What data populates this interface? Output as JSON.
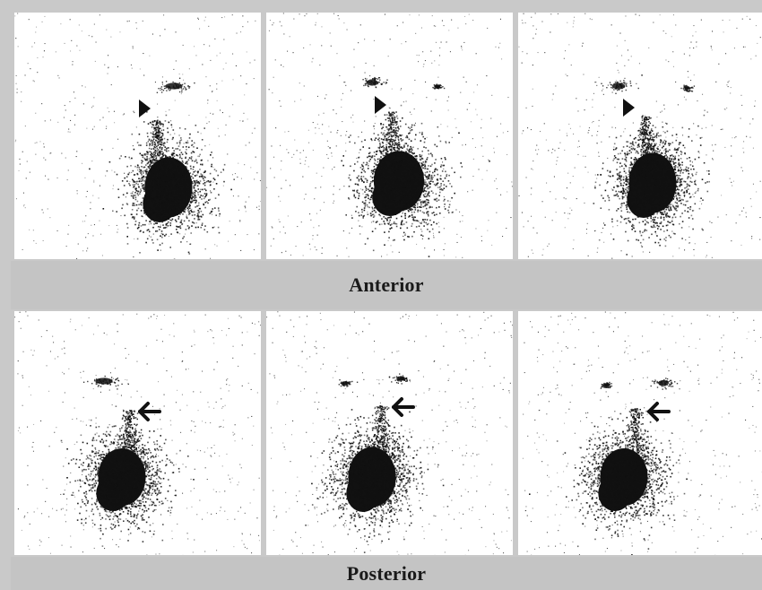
{
  "figure": {
    "background": "#c9c9c9",
    "panel_background": "#ffffff",
    "uptake_color": "#111111",
    "rows": [
      {
        "label": "Anterior",
        "marker": "arrowhead",
        "panels": [
          {
            "name": "anterior-frame-1"
          },
          {
            "name": "anterior-frame-2"
          },
          {
            "name": "anterior-frame-3"
          }
        ]
      },
      {
        "label": "Posterior",
        "marker": "arrow",
        "panels": [
          {
            "name": "posterior-frame-1"
          },
          {
            "name": "posterior-frame-2"
          },
          {
            "name": "posterior-frame-3"
          }
        ]
      }
    ]
  }
}
